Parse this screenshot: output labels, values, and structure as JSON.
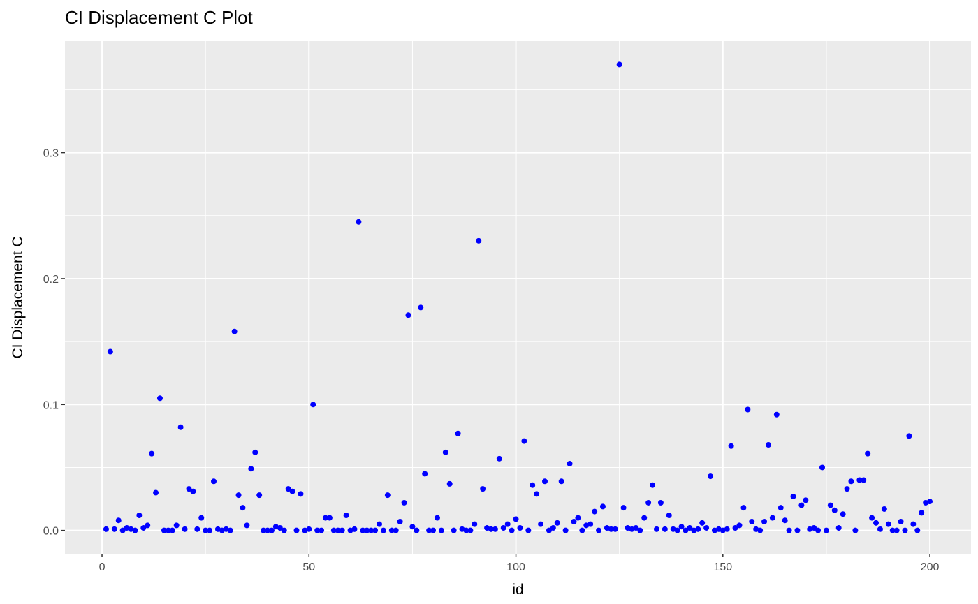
{
  "chart_data": {
    "type": "scatter",
    "title": "CI Displacement C Plot",
    "xlabel": "id",
    "ylabel": "CI Displacement C",
    "xlim": [
      -8.95,
      209.95
    ],
    "ylim": [
      -0.0185,
      0.3885
    ],
    "x_ticks": [
      0,
      50,
      100,
      150,
      200
    ],
    "y_ticks": [
      0.0,
      0.1,
      0.2,
      0.3
    ],
    "y_tick_labels": [
      "0.0",
      "0.1",
      "0.2",
      "0.3"
    ],
    "grid": true,
    "background": "#ebebeb",
    "grid_color": "#ffffff",
    "point_color": "#0000ff",
    "legend": "none",
    "series": [
      {
        "x": [
          1,
          2,
          3,
          4,
          5,
          6,
          7,
          8,
          9,
          10,
          11,
          12,
          13,
          14,
          15,
          16,
          17,
          18,
          19,
          20,
          21,
          22,
          23,
          24,
          25,
          26,
          27,
          28,
          29,
          30,
          31,
          32,
          33,
          34,
          35,
          36,
          37,
          38,
          39,
          40,
          41,
          42,
          43,
          44,
          45,
          46,
          47,
          48,
          49,
          50,
          51,
          52,
          53,
          54,
          55,
          56,
          57,
          58,
          59,
          60,
          61,
          62,
          63,
          64,
          65,
          66,
          67,
          68,
          69,
          70,
          71,
          72,
          73,
          74,
          75,
          76,
          77,
          78,
          79,
          80,
          81,
          82,
          83,
          84,
          85,
          86,
          87,
          88,
          89,
          90,
          91,
          92,
          93,
          94,
          95,
          96,
          97,
          98,
          99,
          100,
          101,
          102,
          103,
          104,
          105,
          106,
          107,
          108,
          109,
          110,
          111,
          112,
          113,
          114,
          115,
          116,
          117,
          118,
          119,
          120,
          121,
          122,
          123,
          124,
          125,
          126,
          127,
          128,
          129,
          130,
          131,
          132,
          133,
          134,
          135,
          136,
          137,
          138,
          139,
          140,
          141,
          142,
          143,
          144,
          145,
          146,
          147,
          148,
          149,
          150,
          151,
          152,
          153,
          154,
          155,
          156,
          157,
          158,
          159,
          160,
          161,
          162,
          163,
          164,
          165,
          166,
          167,
          168,
          169,
          170,
          171,
          172,
          173,
          174,
          175,
          176,
          177,
          178,
          179,
          180,
          181,
          182,
          183,
          184,
          185,
          186,
          187,
          188,
          189,
          190,
          191,
          192,
          193,
          194,
          195,
          196,
          197,
          198,
          199,
          200
        ],
        "y": [
          0.001,
          0.142,
          0.001,
          0.008,
          0,
          0.002,
          0.001,
          0,
          0.012,
          0.002,
          0.004,
          0.061,
          0.03,
          0.105,
          0,
          0,
          0,
          0.004,
          0.082,
          0.001,
          0.033,
          0.031,
          0.001,
          0.01,
          0,
          0,
          0.039,
          0.001,
          0,
          0.001,
          0,
          0.158,
          0.028,
          0.018,
          0.004,
          0.049,
          0.062,
          0.028,
          0,
          0,
          0,
          0.003,
          0.002,
          0,
          0.033,
          0.031,
          0,
          0.029,
          0,
          0.001,
          0.1,
          0,
          0,
          0.01,
          0.01,
          0,
          0,
          0,
          0.012,
          0,
          0.001,
          0.245,
          0,
          0,
          0,
          0,
          0.005,
          0,
          0.028,
          0,
          0,
          0.007,
          0.022,
          0.171,
          0.003,
          0,
          0.177,
          0.045,
          0,
          0,
          0.01,
          0,
          0.062,
          0.037,
          0,
          0.077,
          0.001,
          0,
          0,
          0.005,
          0.23,
          0.033,
          0.002,
          0.001,
          0.001,
          0.057,
          0.002,
          0.005,
          0,
          0.009,
          0.002,
          0.071,
          0,
          0.036,
          0.029,
          0.005,
          0.039,
          0,
          0.002,
          0.006,
          0.039,
          0,
          0.053,
          0.007,
          0.01,
          0,
          0.004,
          0.005,
          0.015,
          0,
          0.019,
          0.002,
          0.001,
          0.001,
          0.37,
          0.018,
          0.002,
          0.001,
          0.002,
          0,
          0.01,
          0.022,
          0.036,
          0.001,
          0.022,
          0.001,
          0.012,
          0.001,
          0,
          0.003,
          0,
          0.002,
          0,
          0.001,
          0.006,
          0.002,
          0.043,
          0,
          0.001,
          0,
          0.001,
          0.067,
          0.002,
          0.004,
          0.018,
          0.096,
          0.007,
          0.001,
          0,
          0.007,
          0.068,
          0.01,
          0.092,
          0.018,
          0.008,
          0,
          0.027,
          0,
          0.02,
          0.024,
          0.001,
          0.002,
          0,
          0.05,
          0,
          0.02,
          0.016,
          0.002,
          0.013,
          0.033,
          0.039,
          0,
          0.04,
          0.04,
          0.061,
          0.01,
          0.006,
          0.001,
          0.017,
          0.005,
          0,
          0,
          0.007,
          0,
          0.075,
          0.005,
          0,
          0.014,
          0.022,
          0.023
        ]
      }
    ]
  }
}
